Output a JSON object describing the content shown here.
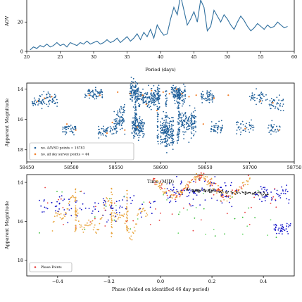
{
  "chart_data": [
    {
      "type": "line",
      "xlabel": "Period (days)",
      "ylabel": "AOV",
      "xlim": [
        20,
        60
      ],
      "ylim": [
        0,
        35
      ],
      "xticks": [
        20,
        25,
        30,
        35,
        40,
        45,
        50,
        55,
        60
      ],
      "yticks": [
        0,
        20
      ],
      "color": "#2f6f9e",
      "x": [
        20.5,
        21,
        21.5,
        22,
        22.5,
        23,
        23.5,
        24,
        24.5,
        25,
        25.5,
        26,
        26.5,
        27,
        27.5,
        28,
        28.5,
        29,
        29.5,
        30,
        30.5,
        31,
        31.5,
        32,
        32.5,
        33,
        33.5,
        34,
        34.5,
        35,
        35.5,
        36,
        36.5,
        37,
        37.5,
        38,
        38.5,
        39,
        39.5,
        40,
        40.5,
        41,
        41.5,
        42,
        42.5,
        43,
        43.5,
        44,
        44.5,
        45,
        45.5,
        46,
        46.5,
        47,
        47.5,
        48,
        48.5,
        49,
        49.5,
        50,
        50.5,
        51,
        51.5,
        52,
        52.5,
        53,
        53.5,
        54,
        54.5,
        55,
        55.5,
        56,
        56.5,
        57,
        57.5,
        58,
        58.5,
        59
      ],
      "y": [
        1,
        3,
        2,
        4,
        3,
        5,
        3,
        4,
        6,
        4,
        5,
        3,
        6,
        5,
        4,
        6,
        5,
        7,
        5,
        6,
        7,
        5,
        6,
        8,
        6,
        7,
        9,
        6,
        8,
        10,
        7,
        9,
        12,
        8,
        13,
        10,
        15,
        9,
        18,
        14,
        11,
        12,
        22,
        30,
        25,
        38,
        28,
        18,
        22,
        27,
        20,
        35,
        30,
        14,
        17,
        28,
        24,
        20,
        25,
        22,
        18,
        15,
        20,
        24,
        21,
        17,
        14,
        16,
        19,
        17,
        15,
        18,
        16,
        17,
        20,
        18,
        16,
        17
      ]
    },
    {
      "type": "scatter",
      "xlabel": "Time (MJD)",
      "ylabel": "Apparent Magnitude",
      "xlim": [
        58450,
        58750
      ],
      "ylim": [
        18.8,
        13.6
      ],
      "xticks": [
        58450,
        58500,
        58550,
        58600,
        58650,
        58700,
        58750
      ],
      "yticks": [
        14,
        16,
        18
      ],
      "legend_position": "lower-left",
      "series": [
        {
          "name": "no. AAVSO points = 18783",
          "color": "#1f5f99"
        },
        {
          "name": "no. all sky survey points = 44",
          "color": "#f07e2a"
        }
      ]
    },
    {
      "type": "scatter",
      "xlabel": "Phase (folded on identified 46 day period)",
      "ylabel": "Apparent Magnitude",
      "xlim": [
        -0.52,
        0.52
      ],
      "ylim": [
        18.8,
        13.6
      ],
      "xticks": [
        -0.4,
        -0.2,
        0.0,
        0.2,
        0.4
      ],
      "xtick_labels": [
        "−0.4",
        "−0.2",
        "0.0",
        "0.2",
        "0.4"
      ],
      "yticks": [
        14,
        16,
        18
      ],
      "legend_position": "lower-left",
      "series": [
        {
          "name": "Phase Points",
          "color": "#e83c3c"
        }
      ],
      "extra_colors": [
        "#e8a33a",
        "#1010c8",
        "#2fb82f",
        "#e83c3c",
        "#6ad86a"
      ]
    }
  ]
}
